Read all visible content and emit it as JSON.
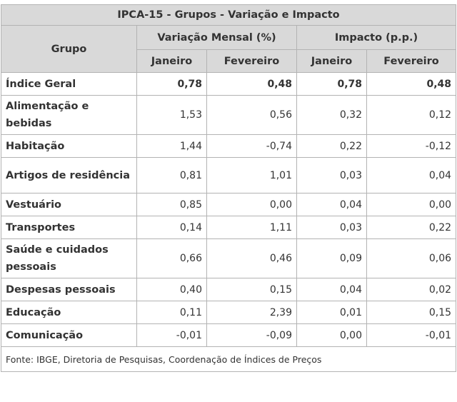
{
  "title": "IPCA-15 - Grupos - Variação e Impacto",
  "headers": {
    "grupo": "Grupo",
    "variacao": "Variação Mensal (%)",
    "impacto": "Impacto (p.p.)",
    "janeiro": "Janeiro",
    "fevereiro": "Fevereiro"
  },
  "rows": [
    {
      "grupo": "Índice Geral",
      "var_jan": "0,78",
      "var_fev": "0,48",
      "imp_jan": "0,78",
      "imp_fev": "0,48"
    },
    {
      "grupo": "Alimentação e bebidas",
      "var_jan": "1,53",
      "var_fev": "0,56",
      "imp_jan": "0,32",
      "imp_fev": "0,12"
    },
    {
      "grupo": "Habitação",
      "var_jan": "1,44",
      "var_fev": "-0,74",
      "imp_jan": "0,22",
      "imp_fev": "-0,12"
    },
    {
      "grupo": "Artigos de residência",
      "var_jan": "0,81",
      "var_fev": "1,01",
      "imp_jan": "0,03",
      "imp_fev": "0,04"
    },
    {
      "grupo": "Vestuário",
      "var_jan": "0,85",
      "var_fev": "0,00",
      "imp_jan": "0,04",
      "imp_fev": "0,00"
    },
    {
      "grupo": "Transportes",
      "var_jan": "0,14",
      "var_fev": "1,11",
      "imp_jan": "0,03",
      "imp_fev": "0,22"
    },
    {
      "grupo": "Saúde e cuidados pessoais",
      "var_jan": "0,66",
      "var_fev": "0,46",
      "imp_jan": "0,09",
      "imp_fev": "0,06"
    },
    {
      "grupo": "Despesas pessoais",
      "var_jan": "0,40",
      "var_fev": "0,15",
      "imp_jan": "0,04",
      "imp_fev": "0,02"
    },
    {
      "grupo": "Educação",
      "var_jan": "0,11",
      "var_fev": "2,39",
      "imp_jan": "0,01",
      "imp_fev": "0,15"
    },
    {
      "grupo": "Comunicação",
      "var_jan": "-0,01",
      "var_fev": "-0,09",
      "imp_jan": "0,00",
      "imp_fev": "-0,01"
    }
  ],
  "source": "Fonte: IBGE, Diretoria de Pesquisas, Coordenação de Índices de Preços"
}
